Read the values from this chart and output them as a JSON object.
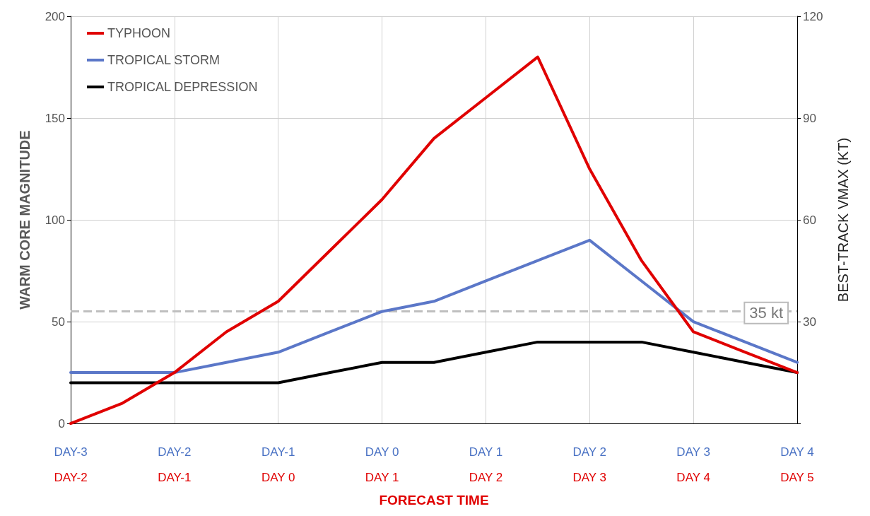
{
  "chart_data": {
    "type": "line",
    "xlabel": "FORECAST TIME",
    "ylabel": "WARM CORE MAGNITUDE",
    "y2label": "BEST-TRACK VMAX (KT)",
    "categories": [
      "DAY-3\nDAY-2",
      null,
      "DAY-2\nDAY-1",
      null,
      "DAY-1\nDAY 0",
      null,
      "DAY 0\nDAY 1",
      null,
      "DAY 1\nDAY 2",
      null,
      "DAY 2\nDAY 3",
      null,
      "DAY 3\nDAY 4",
      null,
      "DAY 4\nDAY 5"
    ],
    "ylim": [
      0,
      200
    ],
    "yticks": [
      0,
      50,
      100,
      150,
      200
    ],
    "y2lim": [
      0,
      120
    ],
    "y2ticks": [
      {
        "value": 0,
        "label": null
      },
      30,
      60,
      90,
      120
    ],
    "series": [
      {
        "name": "TYPHOON",
        "color": "#e00000",
        "values": [
          0,
          10,
          25,
          45,
          60,
          85,
          110,
          140,
          160,
          180,
          125,
          80,
          45,
          35,
          25
        ]
      },
      {
        "name": "TROPICAL STORM",
        "color": "#5b77c8",
        "values": [
          25,
          25,
          25,
          30,
          35,
          45,
          55,
          60,
          70,
          80,
          90,
          70,
          50,
          40,
          30
        ]
      },
      {
        "name": "TROPICAL DEPRESSION",
        "color": "#000000",
        "values": [
          20,
          20,
          20,
          20,
          20,
          25,
          30,
          30,
          35,
          40,
          40,
          40,
          35,
          30,
          25
        ]
      }
    ],
    "ref_lines": [
      {
        "axis": "y",
        "value": 55,
        "label": "35 kt",
        "color": "#bfbfbf",
        "line_style": "dashed"
      }
    ],
    "grid": true,
    "legend": "top left",
    "marker": "none",
    "line_style": "solid"
  }
}
